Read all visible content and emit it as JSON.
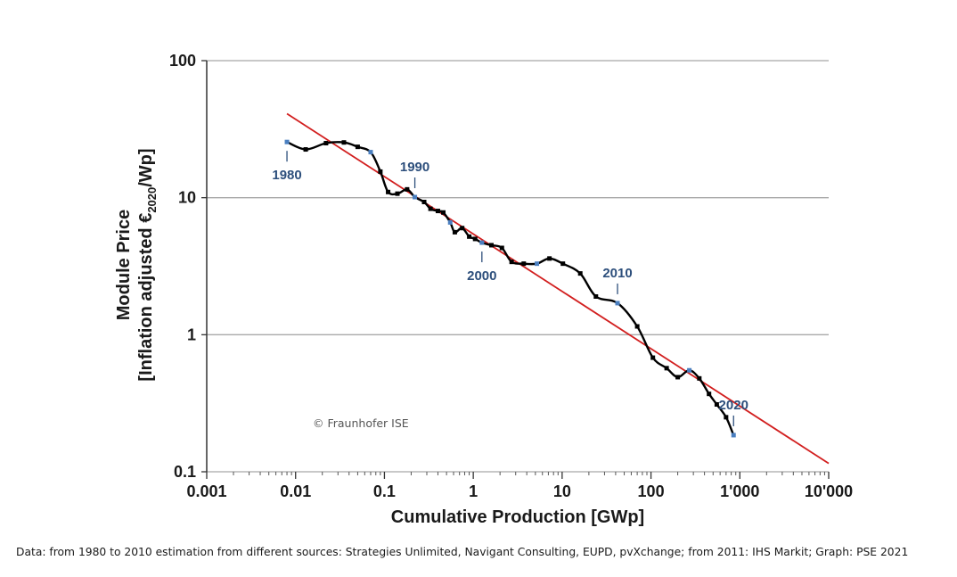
{
  "chart_data": {
    "type": "line",
    "xscale": "log",
    "yscale": "log",
    "xlabel": "Cumulative Production [GWp]",
    "ylabel_line1": "Module Price",
    "ylabel_line2_prefix": "[Inflation adjusted €",
    "ylabel_line2_sub": "2020",
    "ylabel_line2_suffix": "/Wp]",
    "xlim": [
      0.001,
      10000
    ],
    "ylim": [
      0.1,
      100
    ],
    "xticks": [
      {
        "value": 0.001,
        "label": "0.001"
      },
      {
        "value": 0.01,
        "label": "0.01"
      },
      {
        "value": 0.1,
        "label": "0.1"
      },
      {
        "value": 1,
        "label": "1"
      },
      {
        "value": 10,
        "label": "10"
      },
      {
        "value": 100,
        "label": "100"
      },
      {
        "value": 1000,
        "label": "1'000"
      },
      {
        "value": 10000,
        "label": "10'000"
      }
    ],
    "yticks": [
      {
        "value": 0.1,
        "label": "0.1"
      },
      {
        "value": 1,
        "label": "1"
      },
      {
        "value": 10,
        "label": "10"
      },
      {
        "value": 100,
        "label": "100"
      }
    ],
    "grid": "horizontal",
    "series": [
      {
        "color": "#000000",
        "points": [
          [
            0.008,
            25.5
          ],
          [
            0.013,
            22.5
          ],
          [
            0.022,
            25.0
          ],
          [
            0.035,
            25.3
          ],
          [
            0.05,
            23.5
          ],
          [
            0.07,
            21.5
          ],
          [
            0.09,
            15.5
          ],
          [
            0.11,
            11.0
          ],
          [
            0.14,
            10.7
          ],
          [
            0.18,
            11.5
          ],
          [
            0.22,
            10.1
          ],
          [
            0.28,
            9.3
          ],
          [
            0.33,
            8.3
          ],
          [
            0.4,
            8.0
          ],
          [
            0.46,
            7.8
          ],
          [
            0.55,
            6.6
          ],
          [
            0.62,
            5.6
          ],
          [
            0.75,
            6.0
          ],
          [
            0.9,
            5.2
          ],
          [
            1.05,
            5.0
          ],
          [
            1.25,
            4.7
          ],
          [
            1.6,
            4.5
          ],
          [
            2.1,
            4.3
          ],
          [
            2.7,
            3.4
          ],
          [
            3.7,
            3.3
          ],
          [
            5.2,
            3.3
          ],
          [
            7.2,
            3.6
          ],
          [
            10.2,
            3.3
          ],
          [
            16,
            2.8
          ],
          [
            24,
            1.9
          ],
          [
            42,
            1.7
          ],
          [
            70,
            1.15
          ],
          [
            105,
            0.68
          ],
          [
            150,
            0.57
          ],
          [
            200,
            0.49
          ],
          [
            270,
            0.55
          ],
          [
            350,
            0.48
          ],
          [
            450,
            0.37
          ],
          [
            550,
            0.31
          ],
          [
            700,
            0.25
          ],
          [
            850,
            0.185
          ]
        ],
        "highlight_points": [
          [
            0.008,
            25.5
          ],
          [
            0.07,
            21.5
          ],
          [
            0.22,
            10.1
          ],
          [
            0.55,
            6.6
          ],
          [
            1.25,
            4.7
          ],
          [
            5.2,
            3.3
          ],
          [
            42,
            1.7
          ],
          [
            270,
            0.55
          ],
          [
            850,
            0.185
          ]
        ]
      },
      {
        "type": "trendline",
        "color": "#d21f1f",
        "points": [
          [
            0.008,
            41
          ],
          [
            10000,
            0.115
          ]
        ]
      }
    ],
    "annotations": [
      {
        "text": "1980",
        "x": 0.008,
        "y": 25.5,
        "side": "below"
      },
      {
        "text": "1990",
        "x": 0.22,
        "y": 10.1,
        "side": "above"
      },
      {
        "text": "2000",
        "x": 1.25,
        "y": 4.7,
        "side": "below"
      },
      {
        "text": "2010",
        "x": 42,
        "y": 1.7,
        "side": "above"
      },
      {
        "text": "2020",
        "x": 850,
        "y": 0.185,
        "side": "above"
      }
    ],
    "watermark": "© Fraunhofer ISE"
  },
  "footer": {
    "source_note": "Data: from 1980 to 2010 estimation from different sources: Strategies Unlimited, Navigant Consulting, EUPD, pvXchange; from 2011: IHS Markit; Graph: PSE 2021"
  },
  "colors": {
    "series": "#000000",
    "trend": "#d21f1f",
    "highlight": "#4a7fc0",
    "year_label": "#2d4f7c",
    "grid": "#a8a8a8"
  }
}
